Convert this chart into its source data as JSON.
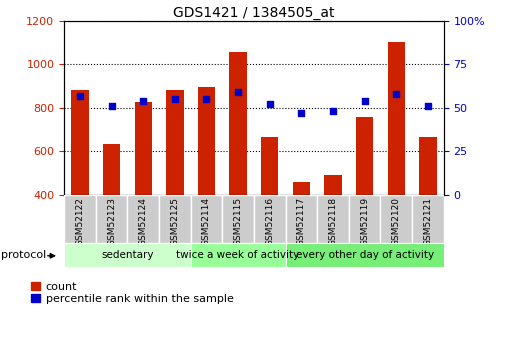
{
  "title": "GDS1421 / 1384505_at",
  "samples": [
    "GSM52122",
    "GSM52123",
    "GSM52124",
    "GSM52125",
    "GSM52114",
    "GSM52115",
    "GSM52116",
    "GSM52117",
    "GSM52118",
    "GSM52119",
    "GSM52120",
    "GSM52121"
  ],
  "counts": [
    880,
    635,
    825,
    882,
    895,
    1055,
    665,
    460,
    490,
    758,
    1100,
    668
  ],
  "percentiles": [
    57,
    51,
    54,
    55,
    55,
    59,
    52,
    47,
    48,
    54,
    58,
    51
  ],
  "ylim_left": [
    400,
    1200
  ],
  "ylim_right": [
    0,
    100
  ],
  "yticks_left": [
    400,
    600,
    800,
    1000,
    1200
  ],
  "yticks_right": [
    0,
    25,
    50,
    75,
    100
  ],
  "bar_color": "#cc2200",
  "dot_color": "#0000cc",
  "bar_bottom": 400,
  "groups": [
    {
      "label": "sedentary",
      "start": 0,
      "end": 4,
      "color": "#ccffcc"
    },
    {
      "label": "twice a week of activity",
      "start": 4,
      "end": 7,
      "color": "#99ff99"
    },
    {
      "label": "every other day of activity",
      "start": 7,
      "end": 12,
      "color": "#77ee77"
    }
  ],
  "legend_items": [
    {
      "label": "count",
      "color": "#cc2200"
    },
    {
      "label": "percentile rank within the sample",
      "color": "#0000cc"
    }
  ],
  "protocol_label": "protocol",
  "bg_color": "#ffffff",
  "tick_color_left": "#cc2200",
  "tick_color_right": "#0000cc",
  "xtick_bg": "#cccccc"
}
